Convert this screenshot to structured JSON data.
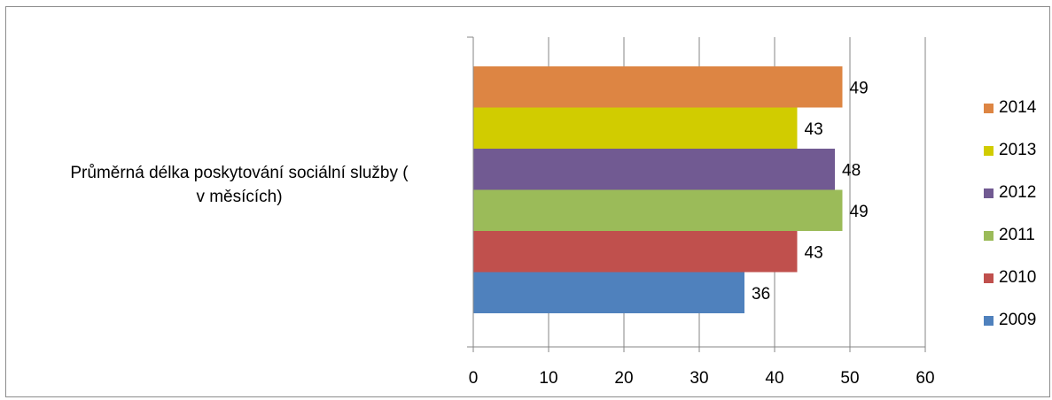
{
  "chart_data": {
    "type": "bar",
    "orientation": "horizontal",
    "categories": [
      "Průměrná délka poskytování sociální služby ( v měsících)"
    ],
    "category_label_lines": [
      "Průměrná délka poskytování sociální služby (",
      "v měsících)"
    ],
    "series": [
      {
        "name": "2014",
        "values": [
          49
        ],
        "color": "#dd8543"
      },
      {
        "name": "2013",
        "values": [
          43
        ],
        "color": "#d1cc00"
      },
      {
        "name": "2012",
        "values": [
          48
        ],
        "color": "#715a92"
      },
      {
        "name": "2011",
        "values": [
          49
        ],
        "color": "#9bbb59"
      },
      {
        "name": "2010",
        "values": [
          43
        ],
        "color": "#c0504d"
      },
      {
        "name": "2009",
        "values": [
          36
        ],
        "color": "#4f81bd"
      }
    ],
    "xlim": [
      0,
      60
    ],
    "xticks": [
      0,
      10,
      20,
      30,
      40,
      50,
      60
    ],
    "grid": true,
    "legend": "right",
    "data_labels": true
  }
}
